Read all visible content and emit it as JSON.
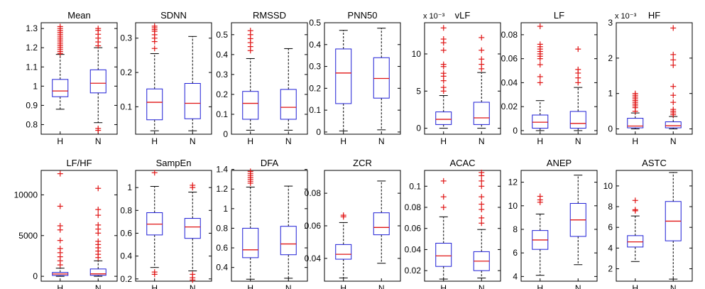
{
  "figure": {
    "colors": {
      "box": "#1f1fd6",
      "median": "#e01515",
      "outlier": "#e01515",
      "whisker": "#000000",
      "axes": "#000000"
    }
  },
  "chart_data": [
    {
      "type": "boxplot",
      "title": "Mean",
      "categories": [
        "H",
        "N"
      ],
      "ylim": [
        0.75,
        1.33
      ],
      "yticks": [
        0.8,
        0.9,
        1,
        1.1,
        1.2,
        1.3
      ],
      "yticklabels": [
        "0.8",
        "0.9",
        "1",
        "1.1",
        "1.2",
        "1.3"
      ],
      "exponent": "",
      "series": [
        {
          "category": "H",
          "whisker_low": 0.88,
          "q1": 0.945,
          "median": 0.975,
          "q3": 1.035,
          "whisker_high": 1.165,
          "outliers": [
            1.17,
            1.18,
            1.19,
            1.2,
            1.21,
            1.22,
            1.23,
            1.24,
            1.25,
            1.26,
            1.27,
            1.28,
            1.29,
            1.3,
            1.31
          ]
        },
        {
          "category": "N",
          "whisker_low": 0.81,
          "q1": 0.965,
          "median": 1.015,
          "q3": 1.085,
          "whisker_high": 1.2,
          "outliers": [
            1.21,
            1.23,
            1.25,
            1.27,
            1.29,
            1.3,
            0.78,
            0.77
          ]
        }
      ]
    },
    {
      "type": "boxplot",
      "title": "SDNN",
      "categories": [
        "H",
        "N"
      ],
      "ylim": [
        0.02,
        0.345
      ],
      "yticks": [
        0.1,
        0.2,
        0.3
      ],
      "yticklabels": [
        "0.1",
        "0.2",
        "0.3"
      ],
      "exponent": "",
      "series": [
        {
          "category": "H",
          "whisker_low": 0.03,
          "q1": 0.062,
          "median": 0.113,
          "q3": 0.152,
          "whisker_high": 0.255,
          "outliers": [
            0.27,
            0.29,
            0.3,
            0.31,
            0.32,
            0.325,
            0.33,
            0.335
          ]
        },
        {
          "category": "N",
          "whisker_low": 0.03,
          "q1": 0.065,
          "median": 0.11,
          "q3": 0.168,
          "whisker_high": 0.305,
          "outliers": []
        }
      ]
    },
    {
      "type": "boxplot",
      "title": "RMSSD",
      "categories": [
        "H",
        "N"
      ],
      "ylim": [
        0,
        0.56
      ],
      "yticks": [
        0,
        0.1,
        0.2,
        0.3,
        0.4,
        0.5
      ],
      "yticklabels": [
        "0",
        "0.1",
        "0.2",
        "0.3",
        "0.4",
        "0.5"
      ],
      "exponent": "",
      "series": [
        {
          "category": "H",
          "whisker_low": 0.02,
          "q1": 0.075,
          "median": 0.155,
          "q3": 0.215,
          "whisker_high": 0.38,
          "outliers": [
            0.42,
            0.44,
            0.46,
            0.48,
            0.5,
            0.52
          ]
        },
        {
          "category": "N",
          "whisker_low": 0.02,
          "q1": 0.075,
          "median": 0.135,
          "q3": 0.225,
          "whisker_high": 0.43,
          "outliers": []
        }
      ]
    },
    {
      "type": "boxplot",
      "title": "PNN50",
      "categories": [
        "H",
        "N"
      ],
      "ylim": [
        -0.01,
        0.5
      ],
      "yticks": [
        0,
        0.1,
        0.2,
        0.3,
        0.4,
        0.5
      ],
      "yticklabels": [
        "0",
        "0.1",
        "0.2",
        "0.3",
        "0.4",
        "0.5"
      ],
      "exponent": "",
      "series": [
        {
          "category": "H",
          "whisker_low": 0.005,
          "q1": 0.13,
          "median": 0.27,
          "q3": 0.38,
          "whisker_high": 0.465,
          "outliers": []
        },
        {
          "category": "N",
          "whisker_low": 0.01,
          "q1": 0.155,
          "median": 0.245,
          "q3": 0.34,
          "whisker_high": 0.475,
          "outliers": []
        }
      ]
    },
    {
      "type": "boxplot",
      "title": "vLF",
      "categories": [
        "H",
        "N"
      ],
      "ylim": [
        -0.8,
        14.2
      ],
      "yticks": [
        0,
        5,
        10
      ],
      "yticklabels": [
        "0",
        "5",
        "10"
      ],
      "exponent": "x 10⁻³",
      "series": [
        {
          "category": "H",
          "whisker_low": 0.0,
          "q1": 0.5,
          "median": 1.2,
          "q3": 2.2,
          "whisker_high": 4.4,
          "outliers": [
            5.0,
            5.5,
            6.4,
            7.0,
            7.4,
            8.3,
            8.6,
            10.5,
            11.5,
            12.0,
            13.5
          ]
        },
        {
          "category": "N",
          "whisker_low": 0.0,
          "q1": 0.5,
          "median": 1.4,
          "q3": 3.5,
          "whisker_high": 7.5,
          "outliers": [
            8.0,
            8.6,
            9.3,
            10.5,
            12.2
          ]
        }
      ]
    },
    {
      "type": "boxplot",
      "title": "LF",
      "categories": [
        "H",
        "N"
      ],
      "ylim": [
        -0.003,
        0.09
      ],
      "yticks": [
        0,
        0.02,
        0.04,
        0.06,
        0.08
      ],
      "yticklabels": [
        "0",
        "0.02",
        "0.04",
        "0.06",
        "0.08"
      ],
      "exponent": "",
      "series": [
        {
          "category": "H",
          "whisker_low": 0.0,
          "q1": 0.002,
          "median": 0.007,
          "q3": 0.013,
          "whisker_high": 0.025,
          "outliers": [
            0.04,
            0.045,
            0.055,
            0.06,
            0.062,
            0.064,
            0.066,
            0.068,
            0.07,
            0.072,
            0.087
          ]
        },
        {
          "category": "N",
          "whisker_low": 0.0,
          "q1": 0.002,
          "median": 0.006,
          "q3": 0.016,
          "whisker_high": 0.036,
          "outliers": [
            0.04,
            0.044,
            0.048,
            0.051,
            0.068
          ]
        }
      ]
    },
    {
      "type": "boxplot",
      "title": "HF",
      "categories": [
        "H",
        "N"
      ],
      "ylim": [
        -0.15,
        3.0
      ],
      "yticks": [
        0,
        1,
        2,
        3
      ],
      "yticklabels": [
        "0",
        "1",
        "2",
        "3"
      ],
      "exponent": "x 10⁻³",
      "series": [
        {
          "category": "H",
          "whisker_low": 0.0,
          "q1": 0.03,
          "median": 0.08,
          "q3": 0.3,
          "whisker_high": 0.45,
          "outliers": [
            0.5,
            0.6,
            0.65,
            0.7,
            0.75,
            0.8,
            0.85,
            0.9,
            0.95,
            1.0
          ]
        },
        {
          "category": "N",
          "whisker_low": 0.0,
          "q1": 0.03,
          "median": 0.09,
          "q3": 0.2,
          "whisker_high": 0.35,
          "outliers": [
            0.4,
            0.45,
            0.5,
            0.55,
            0.75,
            0.95,
            1.2,
            1.8,
            1.95,
            2.1,
            2.85
          ]
        }
      ]
    },
    {
      "type": "boxplot",
      "title": "LF/HF",
      "categories": [
        "H",
        "N"
      ],
      "ylim": [
        -600,
        13000
      ],
      "yticks": [
        0,
        5000,
        10000
      ],
      "yticklabels": [
        "0",
        "5000",
        "10000"
      ],
      "exponent": "",
      "series": [
        {
          "category": "H",
          "whisker_low": 0,
          "q1": 100,
          "median": 280,
          "q3": 480,
          "whisker_high": 1000,
          "outliers": [
            1400,
            1900,
            2400,
            2900,
            3400,
            4400,
            5700,
            6200,
            8600,
            12600
          ]
        },
        {
          "category": "N",
          "whisker_low": 0,
          "q1": 120,
          "median": 300,
          "q3": 900,
          "whisker_high": 1900,
          "outliers": [
            2300,
            2700,
            3100,
            3500,
            3900,
            4300,
            5300,
            5800,
            6300,
            7500,
            8200,
            10800
          ]
        }
      ]
    },
    {
      "type": "boxplot",
      "title": "SampEn",
      "categories": [
        "H",
        "N"
      ],
      "ylim": [
        0.18,
        1.15
      ],
      "yticks": [
        0.2,
        0.4,
        0.6,
        0.8,
        1
      ],
      "yticklabels": [
        "0.2",
        "0.4",
        "0.6",
        "0.8",
        "1"
      ],
      "exponent": "",
      "series": [
        {
          "category": "H",
          "whisker_low": 0.3,
          "q1": 0.585,
          "median": 0.68,
          "q3": 0.78,
          "whisker_high": 1.01,
          "outliers": [
            0.26,
            0.24,
            1.13
          ]
        },
        {
          "category": "N",
          "whisker_low": 0.27,
          "q1": 0.555,
          "median": 0.655,
          "q3": 0.73,
          "whisker_high": 0.96,
          "outliers": [
            0.24,
            0.21,
            0.19,
            1.0,
            1.02
          ]
        }
      ]
    },
    {
      "type": "boxplot",
      "title": "DFA",
      "categories": [
        "H",
        "N"
      ],
      "ylim": [
        0.26,
        1.39
      ],
      "yticks": [
        0.4,
        0.6,
        0.8,
        1,
        1.2,
        1.4
      ],
      "yticklabels": [
        "0.4",
        "0.6",
        "0.8",
        "1",
        "1.2",
        "1.4"
      ],
      "exponent": "",
      "series": [
        {
          "category": "H",
          "whisker_low": 0.28,
          "q1": 0.5,
          "median": 0.58,
          "q3": 0.8,
          "whisker_high": 1.22,
          "outliers": [
            1.26,
            1.28,
            1.3,
            1.32,
            1.34,
            1.36,
            1.38
          ]
        },
        {
          "category": "N",
          "whisker_low": 0.29,
          "q1": 0.53,
          "median": 0.64,
          "q3": 0.82,
          "whisker_high": 1.23,
          "outliers": []
        }
      ]
    },
    {
      "type": "boxplot",
      "title": "ZCR",
      "categories": [
        "H",
        "N"
      ],
      "ylim": [
        0.026,
        0.094
      ],
      "yticks": [
        0.04,
        0.06,
        0.08
      ],
      "yticklabels": [
        "0.04",
        "0.06",
        "0.08"
      ],
      "exponent": "",
      "series": [
        {
          "category": "H",
          "whisker_low": 0.028,
          "q1": 0.0395,
          "median": 0.0425,
          "q3": 0.0485,
          "whisker_high": 0.062,
          "outliers": [
            0.0655,
            0.0665
          ]
        },
        {
          "category": "N",
          "whisker_low": 0.037,
          "q1": 0.0545,
          "median": 0.059,
          "q3": 0.068,
          "whisker_high": 0.0875,
          "outliers": []
        }
      ]
    },
    {
      "type": "boxplot",
      "title": "ACAC",
      "categories": [
        "H",
        "N"
      ],
      "ylim": [
        0.01,
        0.115
      ],
      "yticks": [
        0.02,
        0.04,
        0.06,
        0.08,
        0.1
      ],
      "yticklabels": [
        "0.02",
        "0.04",
        "0.06",
        "0.08",
        "0.1"
      ],
      "exponent": "",
      "series": [
        {
          "category": "H",
          "whisker_low": 0.012,
          "q1": 0.024,
          "median": 0.034,
          "q3": 0.046,
          "whisker_high": 0.071,
          "outliers": [
            0.08,
            0.09,
            0.105
          ]
        },
        {
          "category": "N",
          "whisker_low": 0.013,
          "q1": 0.02,
          "median": 0.029,
          "q3": 0.038,
          "whisker_high": 0.059,
          "outliers": [
            0.065,
            0.07,
            0.078,
            0.083,
            0.09,
            0.1,
            0.105,
            0.11,
            0.113
          ]
        }
      ]
    },
    {
      "type": "boxplot",
      "title": "ANEP",
      "categories": [
        "H",
        "N"
      ],
      "ylim": [
        3.6,
        13
      ],
      "yticks": [
        4,
        6,
        8,
        10,
        12
      ],
      "yticklabels": [
        "4",
        "6",
        "8",
        "10",
        "12"
      ],
      "exponent": "",
      "series": [
        {
          "category": "H",
          "whisker_low": 4.1,
          "q1": 6.3,
          "median": 7.1,
          "q3": 7.9,
          "whisker_high": 9.3,
          "outliers": [
            10.3,
            10.5,
            10.8
          ]
        },
        {
          "category": "N",
          "whisker_low": 5.0,
          "q1": 7.4,
          "median": 8.8,
          "q3": 10.2,
          "whisker_high": 12.6,
          "outliers": []
        }
      ]
    },
    {
      "type": "boxplot",
      "title": "ASTC",
      "categories": [
        "H",
        "N"
      ],
      "ylim": [
        0.8,
        11.5
      ],
      "yticks": [
        2,
        4,
        6,
        8,
        10
      ],
      "yticklabels": [
        "2",
        "4",
        "6",
        "8",
        "10"
      ],
      "exponent": "",
      "series": [
        {
          "category": "H",
          "whisker_low": 2.7,
          "q1": 4.1,
          "median": 4.6,
          "q3": 5.2,
          "whisker_high": 7.1,
          "outliers": [
            7.6,
            7.7,
            8.6
          ]
        },
        {
          "category": "N",
          "whisker_low": 1.0,
          "q1": 4.7,
          "median": 6.6,
          "q3": 8.5,
          "whisker_high": 11.3,
          "outliers": []
        }
      ]
    }
  ]
}
